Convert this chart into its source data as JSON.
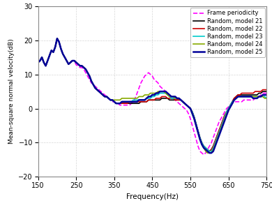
{
  "title": "",
  "xlabel": "Frequency(Hz)",
  "ylabel": "Mean-square normal velocity(dB)",
  "xlim": [
    150,
    750
  ],
  "ylim": [
    -20,
    30
  ],
  "xticks": [
    150,
    250,
    350,
    450,
    550,
    650,
    750
  ],
  "yticks": [
    -20,
    -10,
    0,
    10,
    20,
    30
  ],
  "grid_color": "#cccccc",
  "grid_style": "--",
  "legend_entries": [
    "Frame periodicity",
    "Random, model 21",
    "Random, model 22",
    "Random, model 23",
    "Random, model 24",
    "Random, model 25"
  ],
  "line_colors": [
    "#ff00ff",
    "#000000",
    "#cc0000",
    "#00cccc",
    "#88aa00",
    "#000099"
  ],
  "line_styles": [
    "--",
    "-",
    "-",
    "-",
    "-",
    "-"
  ],
  "line_widths": [
    1.2,
    1.2,
    1.2,
    1.2,
    1.2,
    1.8
  ],
  "background_color": "#ffffff",
  "freq": [
    150,
    155,
    160,
    165,
    170,
    175,
    180,
    185,
    190,
    195,
    200,
    205,
    210,
    215,
    220,
    225,
    230,
    235,
    240,
    245,
    250,
    255,
    260,
    265,
    270,
    275,
    280,
    285,
    290,
    295,
    300,
    305,
    310,
    315,
    320,
    325,
    330,
    335,
    340,
    345,
    350,
    355,
    360,
    365,
    370,
    375,
    380,
    385,
    390,
    395,
    400,
    405,
    410,
    415,
    420,
    425,
    430,
    435,
    440,
    445,
    450,
    455,
    460,
    465,
    470,
    475,
    480,
    485,
    490,
    495,
    500,
    505,
    510,
    515,
    520,
    525,
    530,
    535,
    540,
    545,
    550,
    555,
    560,
    565,
    570,
    575,
    580,
    585,
    590,
    595,
    600,
    605,
    610,
    615,
    620,
    625,
    630,
    635,
    640,
    645,
    650,
    655,
    660,
    665,
    670,
    675,
    680,
    685,
    690,
    695,
    700,
    705,
    710,
    715,
    720,
    725,
    730,
    735,
    740,
    745,
    750
  ],
  "periodic": [
    13.5,
    14.0,
    15.0,
    13.5,
    12.5,
    14.0,
    15.5,
    17.0,
    16.5,
    18.0,
    20.5,
    19.5,
    17.5,
    16.0,
    15.0,
    14.0,
    13.0,
    13.5,
    14.0,
    14.0,
    12.8,
    12.5,
    12.0,
    12.0,
    11.5,
    10.5,
    9.5,
    8.5,
    7.5,
    7.0,
    6.5,
    6.0,
    5.5,
    5.0,
    4.5,
    4.0,
    3.5,
    3.0,
    2.5,
    2.0,
    2.0,
    1.5,
    1.5,
    1.0,
    1.0,
    1.0,
    1.0,
    1.0,
    1.0,
    1.5,
    2.0,
    3.0,
    4.5,
    6.0,
    7.5,
    8.5,
    9.5,
    10.0,
    10.5,
    10.0,
    9.5,
    8.5,
    8.0,
    7.5,
    6.5,
    6.0,
    5.5,
    5.0,
    4.5,
    4.0,
    3.5,
    3.0,
    2.5,
    2.0,
    1.5,
    1.0,
    0.5,
    0.0,
    -0.5,
    -1.5,
    -3.0,
    -5.0,
    -7.0,
    -9.0,
    -11.0,
    -12.5,
    -13.0,
    -13.5,
    -13.0,
    -12.0,
    -11.0,
    -10.0,
    -8.5,
    -7.0,
    -5.5,
    -4.0,
    -3.0,
    -2.0,
    -1.0,
    0.0,
    0.5,
    1.0,
    1.5,
    2.0,
    2.0,
    2.0,
    2.0,
    2.0,
    2.5,
    2.5,
    2.5,
    2.5,
    2.5,
    2.5,
    3.0,
    3.0,
    3.5,
    4.0,
    4.5,
    4.5,
    4.5
  ],
  "rand21": [
    13.5,
    14.0,
    15.0,
    13.5,
    12.5,
    14.0,
    15.5,
    17.0,
    16.5,
    18.0,
    20.5,
    19.5,
    17.5,
    16.0,
    15.0,
    14.0,
    13.0,
    13.5,
    14.0,
    14.0,
    13.5,
    13.0,
    12.5,
    12.5,
    12.0,
    11.5,
    10.5,
    9.5,
    8.0,
    7.0,
    6.0,
    5.5,
    5.0,
    4.5,
    4.0,
    3.5,
    3.5,
    3.0,
    2.5,
    2.5,
    2.0,
    1.5,
    1.5,
    1.5,
    1.5,
    1.5,
    1.5,
    1.5,
    1.5,
    1.5,
    1.5,
    1.5,
    1.5,
    1.5,
    2.0,
    2.0,
    2.0,
    2.0,
    2.5,
    2.5,
    2.5,
    2.5,
    2.5,
    2.5,
    2.5,
    3.0,
    3.0,
    3.0,
    3.0,
    2.5,
    2.5,
    2.5,
    2.5,
    2.5,
    2.5,
    2.5,
    2.0,
    1.5,
    1.0,
    0.5,
    0.0,
    -1.0,
    -2.5,
    -4.5,
    -6.5,
    -8.5,
    -10.0,
    -11.0,
    -11.5,
    -12.0,
    -12.5,
    -12.0,
    -11.0,
    -9.5,
    -8.0,
    -6.5,
    -5.0,
    -3.5,
    -2.0,
    -1.0,
    0.0,
    1.0,
    2.0,
    3.0,
    3.5,
    4.0,
    4.0,
    4.0,
    4.0,
    4.0,
    4.0,
    4.0,
    4.0,
    4.0,
    4.0,
    4.0,
    4.5,
    4.5,
    5.0,
    5.0,
    5.0
  ],
  "rand22": [
    13.5,
    14.0,
    15.0,
    13.5,
    12.5,
    14.0,
    15.5,
    17.0,
    16.5,
    18.0,
    20.5,
    19.5,
    17.5,
    16.0,
    15.0,
    14.0,
    13.0,
    13.5,
    14.0,
    14.0,
    13.5,
    13.0,
    12.5,
    12.5,
    12.0,
    11.5,
    10.5,
    9.5,
    8.0,
    7.0,
    6.0,
    5.5,
    5.0,
    4.5,
    4.0,
    3.5,
    3.5,
    3.0,
    2.5,
    2.5,
    2.0,
    1.5,
    1.5,
    1.5,
    1.5,
    1.5,
    1.5,
    1.5,
    2.0,
    2.0,
    2.0,
    2.0,
    2.0,
    2.0,
    2.0,
    2.0,
    2.0,
    2.0,
    2.5,
    2.5,
    2.5,
    2.5,
    3.0,
    3.0,
    3.0,
    3.5,
    3.5,
    3.5,
    3.0,
    3.0,
    3.0,
    3.0,
    2.5,
    2.5,
    2.5,
    2.5,
    2.0,
    1.5,
    1.0,
    0.5,
    0.0,
    -1.0,
    -2.5,
    -4.5,
    -6.5,
    -8.5,
    -10.0,
    -11.0,
    -11.5,
    -12.0,
    -12.5,
    -12.0,
    -11.0,
    -9.5,
    -8.0,
    -6.5,
    -5.0,
    -3.5,
    -2.0,
    -1.0,
    0.0,
    1.0,
    2.0,
    3.0,
    3.5,
    4.0,
    4.0,
    4.5,
    4.5,
    4.5,
    4.5,
    4.5,
    4.5,
    4.5,
    5.0,
    5.0,
    5.0,
    5.0,
    5.5,
    5.5,
    5.5
  ],
  "rand23": [
    13.5,
    14.0,
    15.0,
    13.5,
    12.5,
    14.0,
    15.5,
    17.0,
    16.5,
    18.0,
    20.5,
    19.5,
    17.5,
    16.0,
    15.0,
    14.0,
    13.0,
    13.5,
    14.0,
    14.0,
    13.5,
    13.0,
    12.5,
    12.5,
    12.0,
    11.5,
    10.5,
    9.5,
    8.0,
    7.0,
    6.0,
    5.5,
    5.0,
    4.5,
    4.0,
    3.5,
    3.5,
    3.0,
    2.5,
    2.5,
    2.0,
    1.5,
    1.5,
    1.5,
    2.0,
    2.0,
    2.0,
    2.0,
    2.0,
    2.0,
    2.5,
    2.5,
    2.5,
    2.5,
    2.5,
    2.5,
    2.5,
    3.0,
    3.0,
    3.0,
    3.5,
    3.5,
    4.0,
    4.0,
    4.5,
    4.5,
    4.5,
    4.5,
    4.0,
    3.5,
    3.0,
    3.0,
    3.0,
    3.0,
    3.0,
    2.5,
    2.0,
    1.5,
    1.0,
    0.5,
    0.0,
    -1.0,
    -2.5,
    -4.5,
    -6.5,
    -8.5,
    -10.0,
    -11.0,
    -11.5,
    -12.0,
    -12.5,
    -12.5,
    -11.5,
    -10.0,
    -8.5,
    -7.0,
    -5.5,
    -4.0,
    -2.5,
    -1.0,
    0.0,
    1.0,
    2.0,
    2.5,
    3.0,
    3.5,
    3.5,
    3.5,
    3.5,
    3.5,
    3.5,
    3.5,
    3.5,
    3.5,
    3.5,
    3.5,
    3.5,
    3.5,
    3.5,
    3.5,
    3.0
  ],
  "rand24": [
    13.5,
    14.0,
    15.0,
    13.5,
    12.5,
    14.0,
    15.5,
    17.0,
    16.5,
    18.0,
    20.5,
    19.5,
    17.5,
    16.0,
    15.0,
    14.0,
    13.0,
    13.5,
    14.0,
    14.0,
    13.5,
    13.0,
    12.5,
    12.5,
    12.0,
    11.5,
    10.5,
    9.5,
    8.0,
    7.0,
    6.0,
    5.5,
    5.0,
    4.5,
    4.0,
    3.5,
    3.5,
    3.0,
    2.5,
    2.5,
    2.5,
    2.5,
    2.5,
    2.5,
    3.0,
    3.0,
    3.0,
    3.0,
    3.0,
    3.0,
    3.0,
    3.0,
    3.0,
    3.5,
    3.5,
    3.5,
    4.0,
    4.0,
    4.0,
    4.5,
    4.5,
    4.5,
    4.5,
    5.0,
    5.0,
    5.0,
    5.0,
    4.5,
    4.0,
    3.5,
    3.5,
    3.5,
    3.0,
    3.0,
    3.0,
    2.5,
    2.0,
    1.5,
    1.0,
    0.5,
    0.0,
    -1.5,
    -3.0,
    -5.0,
    -7.0,
    -9.0,
    -10.5,
    -11.5,
    -12.5,
    -13.0,
    -13.0,
    -13.0,
    -12.0,
    -10.5,
    -9.0,
    -7.5,
    -6.0,
    -4.5,
    -3.0,
    -1.5,
    -0.5,
    0.5,
    1.5,
    2.5,
    3.0,
    3.5,
    3.5,
    3.5,
    3.5,
    3.5,
    3.5,
    3.5,
    3.5,
    3.5,
    3.5,
    3.5,
    3.5,
    3.5,
    3.5,
    3.0,
    3.0
  ],
  "rand25": [
    13.5,
    14.0,
    15.0,
    13.5,
    12.5,
    14.0,
    15.5,
    17.0,
    16.5,
    18.0,
    20.5,
    19.5,
    17.5,
    16.0,
    15.0,
    14.0,
    13.0,
    13.5,
    14.0,
    14.0,
    13.5,
    13.0,
    12.5,
    12.5,
    12.0,
    11.5,
    10.5,
    9.5,
    8.0,
    7.0,
    6.0,
    5.5,
    5.0,
    4.5,
    4.0,
    3.5,
    3.5,
    3.0,
    2.5,
    2.5,
    2.0,
    1.5,
    1.5,
    1.5,
    2.0,
    2.0,
    2.0,
    2.0,
    2.0,
    2.0,
    2.0,
    2.0,
    2.0,
    2.5,
    2.5,
    2.5,
    2.5,
    3.0,
    3.5,
    3.5,
    4.0,
    4.0,
    4.5,
    4.5,
    5.0,
    5.0,
    5.0,
    5.0,
    4.5,
    4.0,
    3.5,
    3.5,
    3.5,
    3.0,
    3.0,
    2.5,
    2.0,
    1.5,
    1.0,
    0.5,
    0.0,
    -1.5,
    -3.0,
    -5.0,
    -7.0,
    -9.0,
    -10.5,
    -11.5,
    -12.0,
    -12.5,
    -13.0,
    -13.0,
    -12.5,
    -11.0,
    -9.5,
    -8.0,
    -6.5,
    -5.0,
    -3.5,
    -2.0,
    -0.5,
    0.5,
    1.5,
    2.5,
    3.0,
    3.5,
    3.5,
    3.5,
    3.5,
    3.5,
    3.5,
    3.5,
    3.5,
    3.0,
    3.0,
    3.0,
    3.5,
    3.5,
    4.0,
    4.0,
    4.0
  ]
}
